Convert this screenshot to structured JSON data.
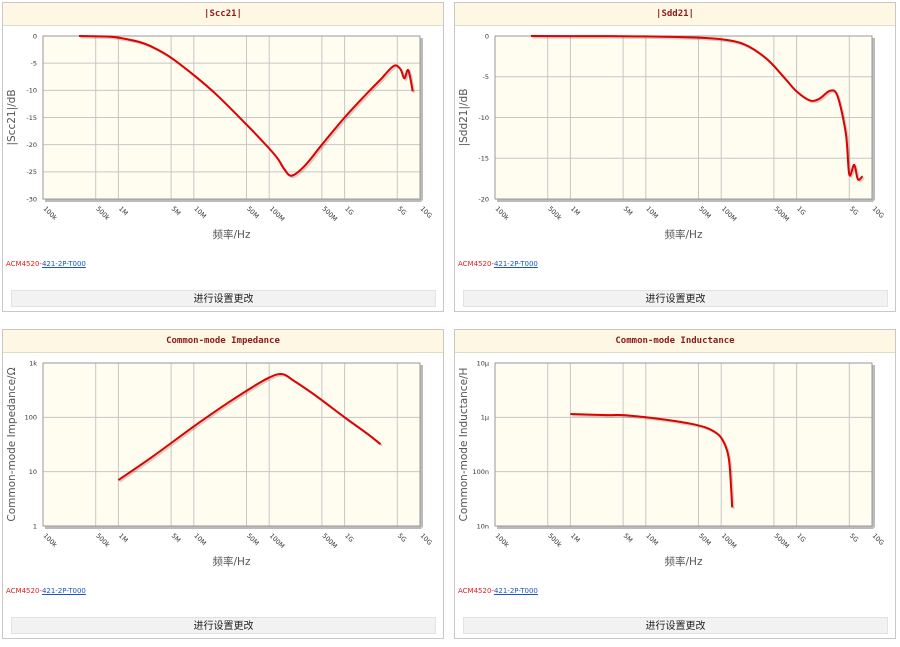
{
  "panels": [
    {
      "title": "|Scc21|",
      "part_prefix": "ACM4520-",
      "part_link": "421-2P-T000",
      "button_label": "进行设置更改"
    },
    {
      "title": "|Sdd21|",
      "part_prefix": "ACM4520-",
      "part_link": "421-2P-T000",
      "button_label": "进行设置更改"
    },
    {
      "title": "Common-mode Impedance",
      "part_prefix": "ACM4520-",
      "part_link": "421-2P-T000",
      "button_label": "进行设置更改"
    },
    {
      "title": "Common-mode Inductance",
      "part_prefix": "ACM4520-",
      "part_link": "421-2P-T000",
      "button_label": "进行设置更改"
    }
  ],
  "colors": {
    "curve": "#e00000",
    "plot_bg": "#fffcf0",
    "header_bg": "#fdf7e3",
    "title": "#8b1a1a"
  },
  "chart_data": [
    {
      "type": "line",
      "title": "|Scc21|",
      "xlabel": "频率/Hz",
      "ylabel": "|Scc21|/dB",
      "xscale": "log",
      "xlim": [
        100000,
        10000000000
      ],
      "xticks": [
        100000,
        500000,
        1000000,
        5000000,
        10000000,
        50000000,
        100000000,
        500000000,
        1000000000,
        5000000000,
        10000000000
      ],
      "xticklabels": [
        "100k",
        "500k",
        "1M",
        "5M",
        "10M",
        "50M",
        "100M",
        "500M",
        "1G",
        "5G",
        "10G"
      ],
      "ylim": [
        -30,
        0
      ],
      "yticks": [
        0,
        -5,
        -10,
        -15,
        -20,
        -25,
        -30
      ],
      "yticklabels": [
        "0",
        "-5",
        "-10",
        "-15",
        "-20",
        "-25",
        "-30"
      ],
      "series": [
        {
          "x": [
            300000,
            700000,
            1000000,
            2000000,
            3000000,
            5000000,
            10000000,
            20000000,
            50000000,
            100000000,
            130000000,
            160000000,
            200000000,
            300000000,
            500000000,
            1000000000,
            2000000000,
            3000000000,
            4500000000,
            5500000000,
            6200000000,
            7000000000,
            8000000000
          ],
          "y": [
            0,
            -0.1,
            -0.3,
            -1.2,
            -2.2,
            -4.0,
            -7.2,
            -10.8,
            -16.3,
            -20.7,
            -22.6,
            -24.6,
            -25.7,
            -23.8,
            -20.0,
            -15.0,
            -10.5,
            -8.0,
            -5.5,
            -6.1,
            -7.8,
            -6.3,
            -10.2
          ]
        }
      ]
    },
    {
      "type": "line",
      "title": "|Sdd21|",
      "xlabel": "频率/Hz",
      "ylabel": "|Sdd21|/dB",
      "xscale": "log",
      "xlim": [
        100000,
        10000000000
      ],
      "xticks": [
        100000,
        500000,
        1000000,
        5000000,
        10000000,
        50000000,
        100000000,
        500000000,
        1000000000,
        5000000000,
        10000000000
      ],
      "xticklabels": [
        "100k",
        "500k",
        "1M",
        "5M",
        "10M",
        "50M",
        "100M",
        "500M",
        "1G",
        "5G",
        "10G"
      ],
      "ylim": [
        -20,
        0
      ],
      "yticks": [
        0,
        -5,
        -10,
        -15,
        -20
      ],
      "yticklabels": [
        "0",
        "-5",
        "-10",
        "-15",
        "-20"
      ],
      "series": [
        {
          "x": [
            300000,
            1000000,
            10000000,
            50000000,
            100000000,
            200000000,
            400000000,
            700000000,
            1000000000,
            1500000000,
            2000000000,
            2800000000,
            3500000000,
            4500000000,
            5000000000,
            5800000000,
            6500000000,
            7500000000
          ],
          "y": [
            0,
            -0.01,
            -0.05,
            -0.2,
            -0.4,
            -1.0,
            -2.8,
            -5.2,
            -6.8,
            -7.9,
            -7.7,
            -6.7,
            -7.4,
            -12.0,
            -17.0,
            -15.8,
            -17.6,
            -17.2
          ]
        }
      ]
    },
    {
      "type": "line",
      "title": "Common-mode Impedance",
      "xlabel": "频率/Hz",
      "ylabel": "Common-mode Impedance/Ω",
      "xscale": "log",
      "xlim": [
        100000,
        10000000000
      ],
      "xticks": [
        100000,
        500000,
        1000000,
        5000000,
        10000000,
        50000000,
        100000000,
        500000000,
        1000000000,
        5000000000,
        10000000000
      ],
      "xticklabels": [
        "100k",
        "500k",
        "1M",
        "5M",
        "10M",
        "50M",
        "100M",
        "500M",
        "1G",
        "5G",
        "10G"
      ],
      "yscale": "log",
      "ylim": [
        1,
        1000
      ],
      "yticks": [
        1,
        10,
        100,
        1000
      ],
      "yticklabels": [
        "1",
        "10",
        "100",
        "1k"
      ],
      "series": [
        {
          "x": [
            1000000,
            3000000,
            10000000,
            30000000,
            70000000,
            100000000,
            130000000,
            160000000,
            200000000,
            400000000,
            1000000000,
            2000000000,
            3000000000
          ],
          "y": [
            7,
            20,
            68,
            195,
            410,
            540,
            620,
            610,
            500,
            260,
            100,
            50,
            32
          ]
        }
      ]
    },
    {
      "type": "line",
      "title": "Common-mode Inductance",
      "xlabel": "频率/Hz",
      "ylabel": "Common-mode Inductance/H",
      "xscale": "log",
      "xlim": [
        100000,
        10000000000
      ],
      "xticks": [
        100000,
        500000,
        1000000,
        5000000,
        10000000,
        50000000,
        100000000,
        500000000,
        1000000000,
        5000000000,
        10000000000
      ],
      "xticklabels": [
        "100k",
        "500k",
        "1M",
        "5M",
        "10M",
        "50M",
        "100M",
        "500M",
        "1G",
        "5G",
        "10G"
      ],
      "yscale": "log",
      "ylim": [
        1e-08,
        1e-05
      ],
      "yticks": [
        1e-08,
        1e-07,
        1e-06,
        1e-05
      ],
      "yticklabels": [
        "10n",
        "100n",
        "1μ",
        "10μ"
      ],
      "series": [
        {
          "x": [
            1000000,
            3000000,
            5000000,
            10000000,
            20000000,
            40000000,
            60000000,
            80000000,
            100000000,
            120000000,
            130000000,
            140000000
          ],
          "y": [
            1.15e-06,
            1.1e-06,
            1.1e-06,
            1e-06,
            8.9e-07,
            7.6e-07,
            6.6e-07,
            5.5e-07,
            4.2e-07,
            2.4e-07,
            1.2e-07,
            2.2e-08
          ]
        }
      ]
    }
  ]
}
